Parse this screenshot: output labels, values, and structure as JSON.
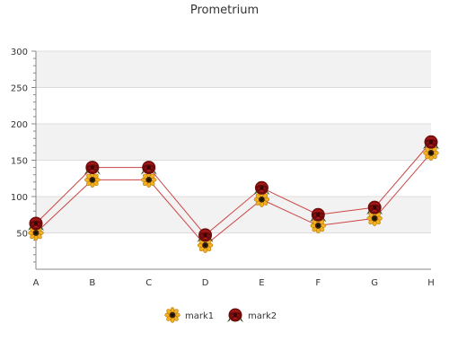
{
  "chart_data": {
    "type": "line",
    "title": "Prometrium",
    "xlabel": "",
    "ylabel": "",
    "categories": [
      "A",
      "B",
      "C",
      "D",
      "E",
      "F",
      "G",
      "H"
    ],
    "ylim": [
      0,
      300
    ],
    "yticks": [
      50,
      100,
      150,
      200,
      250,
      300
    ],
    "grid": true,
    "legend_position": "bottom",
    "series": [
      {
        "name": "mark1",
        "values": [
          50,
          123,
          123,
          33,
          96,
          60,
          70,
          160
        ],
        "marker": "sunflower-icon",
        "color": "#cc4444"
      },
      {
        "name": "mark2",
        "values": [
          63,
          140,
          140,
          47,
          112,
          75,
          85,
          175
        ],
        "marker": "rose-icon",
        "color": "#cc4444"
      }
    ],
    "colors": {
      "line": "#cc4444",
      "band": "#f2f2f2",
      "gridline": "#dddddd",
      "axis": "#888888",
      "text": "#333333"
    }
  }
}
